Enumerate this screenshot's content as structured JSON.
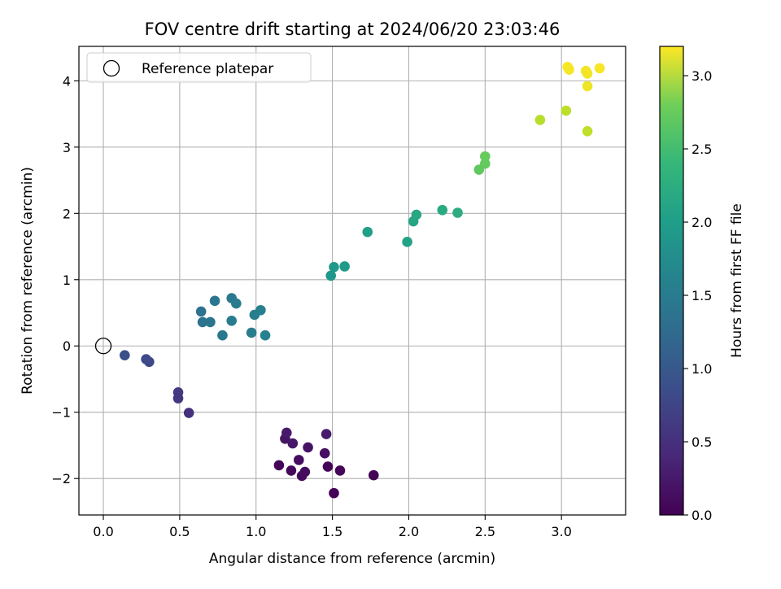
{
  "chart_data": {
    "type": "scatter",
    "title": "FOV centre drift starting at 2024/06/20 23:03:46",
    "xlabel": "Angular distance from reference (arcmin)",
    "ylabel": "Rotation from reference (arcmin)",
    "xlim": [
      -0.16,
      3.42
    ],
    "ylim": [
      -2.55,
      4.52
    ],
    "xticks": [
      "0.0",
      "0.5",
      "1.0",
      "1.5",
      "2.0",
      "2.5",
      "3.0"
    ],
    "yticks": [
      "−2",
      "−1",
      "0",
      "1",
      "2",
      "3",
      "4"
    ],
    "grid": true,
    "legend": {
      "placement": "top-left",
      "label": "Reference platepar",
      "marker": "open-circle"
    },
    "reference_point": {
      "x": 0.0,
      "y": 0.0
    },
    "colorbar": {
      "label": "Hours from first FF file",
      "colormap": "viridis",
      "range": [
        0.0,
        3.2
      ],
      "ticks": [
        "0.0",
        "0.5",
        "1.0",
        "1.5",
        "2.0",
        "2.5",
        "3.0"
      ]
    },
    "points": [
      {
        "x": 1.51,
        "y": -2.22,
        "c": 0.02
      },
      {
        "x": 1.15,
        "y": -1.8,
        "c": 0.04
      },
      {
        "x": 1.23,
        "y": -1.88,
        "c": 0.06
      },
      {
        "x": 1.3,
        "y": -1.96,
        "c": 0.08
      },
      {
        "x": 1.32,
        "y": -1.9,
        "c": 0.1
      },
      {
        "x": 1.28,
        "y": -1.72,
        "c": 0.12
      },
      {
        "x": 1.47,
        "y": -1.82,
        "c": 0.03
      },
      {
        "x": 1.55,
        "y": -1.88,
        "c": 0.05
      },
      {
        "x": 1.77,
        "y": -1.95,
        "c": 0.01
      },
      {
        "x": 1.45,
        "y": -1.62,
        "c": 0.14
      },
      {
        "x": 1.34,
        "y": -1.53,
        "c": 0.16
      },
      {
        "x": 1.19,
        "y": -1.4,
        "c": 0.18
      },
      {
        "x": 1.24,
        "y": -1.47,
        "c": 0.2
      },
      {
        "x": 1.2,
        "y": -1.31,
        "c": 0.22
      },
      {
        "x": 1.46,
        "y": -1.33,
        "c": 0.24
      },
      {
        "x": 0.56,
        "y": -1.01,
        "c": 0.45
      },
      {
        "x": 0.49,
        "y": -0.7,
        "c": 0.55
      },
      {
        "x": 0.49,
        "y": -0.79,
        "c": 0.52
      },
      {
        "x": 0.3,
        "y": -0.24,
        "c": 0.7
      },
      {
        "x": 0.28,
        "y": -0.2,
        "c": 0.72
      },
      {
        "x": 0.14,
        "y": -0.14,
        "c": 0.78
      },
      {
        "x": 0.64,
        "y": 0.52,
        "c": 1.2
      },
      {
        "x": 0.65,
        "y": 0.36,
        "c": 1.22
      },
      {
        "x": 0.7,
        "y": 0.36,
        "c": 1.24
      },
      {
        "x": 0.73,
        "y": 0.68,
        "c": 1.26
      },
      {
        "x": 0.78,
        "y": 0.16,
        "c": 1.28
      },
      {
        "x": 0.84,
        "y": 0.72,
        "c": 1.3
      },
      {
        "x": 0.84,
        "y": 0.38,
        "c": 1.32
      },
      {
        "x": 0.87,
        "y": 0.64,
        "c": 1.34
      },
      {
        "x": 0.97,
        "y": 0.2,
        "c": 1.36
      },
      {
        "x": 0.99,
        "y": 0.47,
        "c": 1.38
      },
      {
        "x": 1.03,
        "y": 0.54,
        "c": 1.4
      },
      {
        "x": 1.06,
        "y": 0.16,
        "c": 1.42
      },
      {
        "x": 1.49,
        "y": 1.06,
        "c": 1.7
      },
      {
        "x": 1.51,
        "y": 1.19,
        "c": 1.72
      },
      {
        "x": 1.58,
        "y": 1.2,
        "c": 1.74
      },
      {
        "x": 1.73,
        "y": 1.72,
        "c": 1.8
      },
      {
        "x": 1.99,
        "y": 1.57,
        "c": 1.85
      },
      {
        "x": 2.03,
        "y": 1.88,
        "c": 1.88
      },
      {
        "x": 2.05,
        "y": 1.98,
        "c": 1.9
      },
      {
        "x": 2.22,
        "y": 2.05,
        "c": 1.95
      },
      {
        "x": 2.32,
        "y": 2.01,
        "c": 1.98
      },
      {
        "x": 2.46,
        "y": 2.66,
        "c": 2.4
      },
      {
        "x": 2.5,
        "y": 2.75,
        "c": 2.42
      },
      {
        "x": 2.5,
        "y": 2.86,
        "c": 2.44
      },
      {
        "x": 2.86,
        "y": 3.41,
        "c": 2.85
      },
      {
        "x": 3.03,
        "y": 3.55,
        "c": 2.88
      },
      {
        "x": 3.17,
        "y": 3.24,
        "c": 2.9
      },
      {
        "x": 3.04,
        "y": 4.21,
        "c": 3.18
      },
      {
        "x": 3.05,
        "y": 4.17,
        "c": 3.16
      },
      {
        "x": 3.16,
        "y": 4.15,
        "c": 3.15
      },
      {
        "x": 3.17,
        "y": 4.11,
        "c": 3.14
      },
      {
        "x": 3.17,
        "y": 3.92,
        "c": 3.12
      },
      {
        "x": 3.25,
        "y": 4.19,
        "c": 3.17
      }
    ]
  }
}
